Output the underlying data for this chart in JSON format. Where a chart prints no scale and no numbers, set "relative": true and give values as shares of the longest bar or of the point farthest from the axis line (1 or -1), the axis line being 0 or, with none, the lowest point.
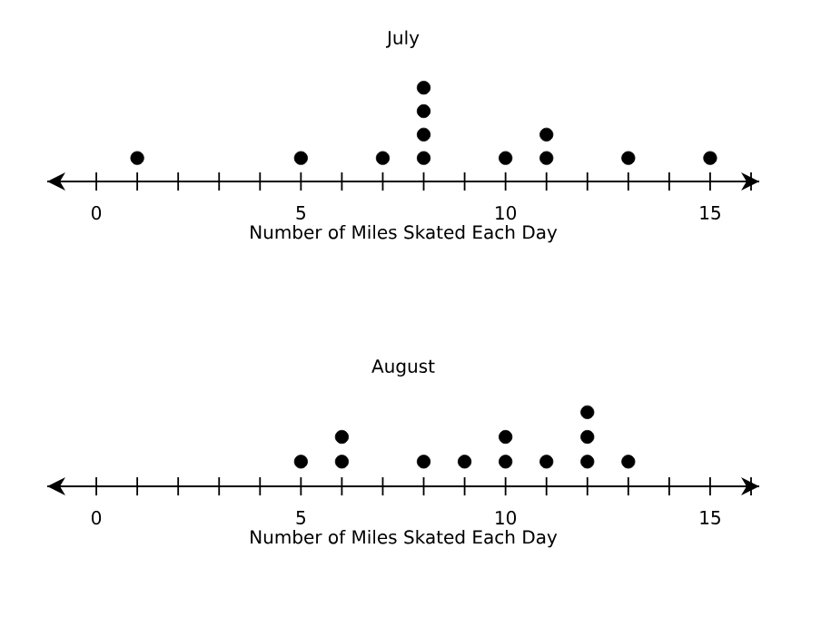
{
  "chart_data": [
    {
      "type": "scatter",
      "title": "July",
      "xlabel": "Number of Miles Skated Each Day",
      "color": "#000000",
      "grid": false,
      "tick_labels": "x",
      "relative": true,
      "x": [
        1,
        5,
        7,
        8,
        8,
        8,
        8,
        10,
        11,
        11,
        13,
        15
      ],
      "values": [
        0.25,
        0.25,
        0.25,
        0.25,
        0.5,
        0.75,
        1,
        0.25,
        0.25,
        0.5,
        0.25,
        0.25
      ],
      "xlim": [
        -1.2,
        16.2
      ],
      "xticks": [
        0,
        {
          "value": 1,
          "label": null
        },
        {
          "value": 2,
          "label": null
        },
        {
          "value": 3,
          "label": null
        },
        {
          "value": 4,
          "label": null
        },
        5,
        {
          "value": 6,
          "label": null
        },
        {
          "value": 7,
          "label": null
        },
        {
          "value": 8,
          "label": null
        },
        {
          "value": 9,
          "label": null
        },
        10,
        {
          "value": 11,
          "label": null
        },
        {
          "value": 12,
          "label": null
        },
        {
          "value": 13,
          "label": null
        },
        {
          "value": 14,
          "label": null
        },
        15,
        {
          "value": 16,
          "label": null
        }
      ]
    },
    {
      "type": "scatter",
      "title": "August",
      "xlabel": "Number of Miles Skated Each Day",
      "color": "#000000",
      "grid": false,
      "tick_labels": "x",
      "relative": true,
      "x": [
        5,
        6,
        6,
        8,
        9,
        10,
        10,
        11,
        12,
        12,
        12,
        13
      ],
      "values": [
        0.333,
        0.333,
        0.667,
        0.333,
        0.333,
        0.333,
        0.667,
        0.333,
        0.333,
        0.667,
        1,
        0.333
      ],
      "xlim": [
        -1.2,
        16.2
      ],
      "xticks": [
        0,
        {
          "value": 1,
          "label": null
        },
        {
          "value": 2,
          "label": null
        },
        {
          "value": 3,
          "label": null
        },
        {
          "value": 4,
          "label": null
        },
        5,
        {
          "value": 6,
          "label": null
        },
        {
          "value": 7,
          "label": null
        },
        {
          "value": 8,
          "label": null
        },
        {
          "value": 9,
          "label": null
        },
        10,
        {
          "value": 11,
          "label": null
        },
        {
          "value": 12,
          "label": null
        },
        {
          "value": 13,
          "label": null
        },
        {
          "value": 14,
          "label": null
        },
        15,
        {
          "value": 16,
          "label": null
        }
      ]
    }
  ]
}
